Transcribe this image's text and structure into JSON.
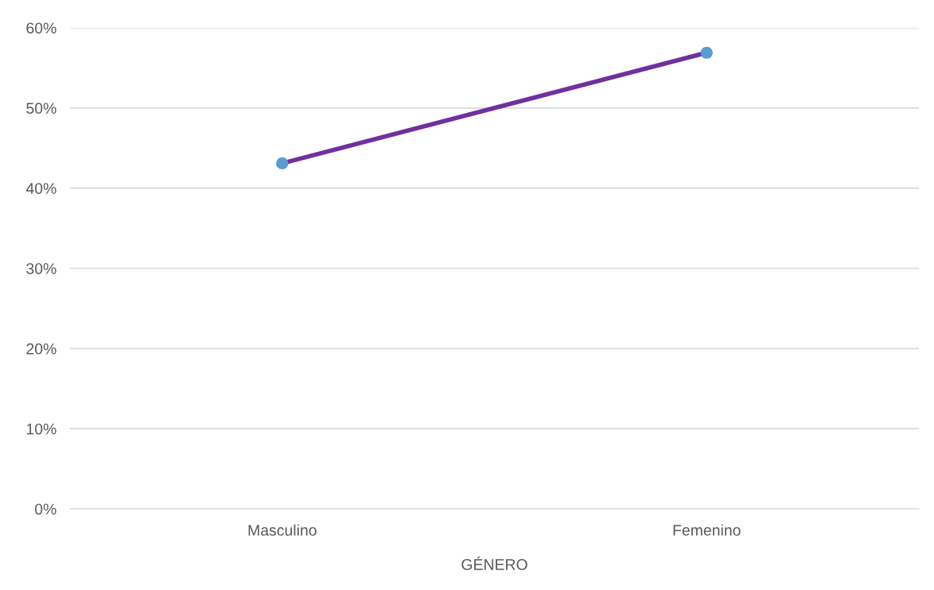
{
  "chart_data": {
    "type": "line",
    "xlabel": "GÉNERO",
    "categories": [
      "Masculino",
      "Femenino"
    ],
    "series": [
      {
        "color": "#7030a0",
        "colors": [
          "#5b9bd5",
          "#5b9bd5"
        ],
        "values": [
          43.1,
          56.9
        ]
      }
    ],
    "ylim": [
      0,
      60
    ],
    "yticks": [
      {
        "value": 0,
        "label": "0%"
      },
      {
        "value": 10,
        "label": "10%"
      },
      {
        "value": 20,
        "label": "20%"
      },
      {
        "value": 30,
        "label": "30%"
      },
      {
        "value": 40,
        "label": "40%"
      },
      {
        "value": 50,
        "label": "50%"
      },
      {
        "value": 60,
        "label": "60%"
      }
    ],
    "grid": "y",
    "marker": "circle",
    "line_style": "solid",
    "legend": false
  }
}
